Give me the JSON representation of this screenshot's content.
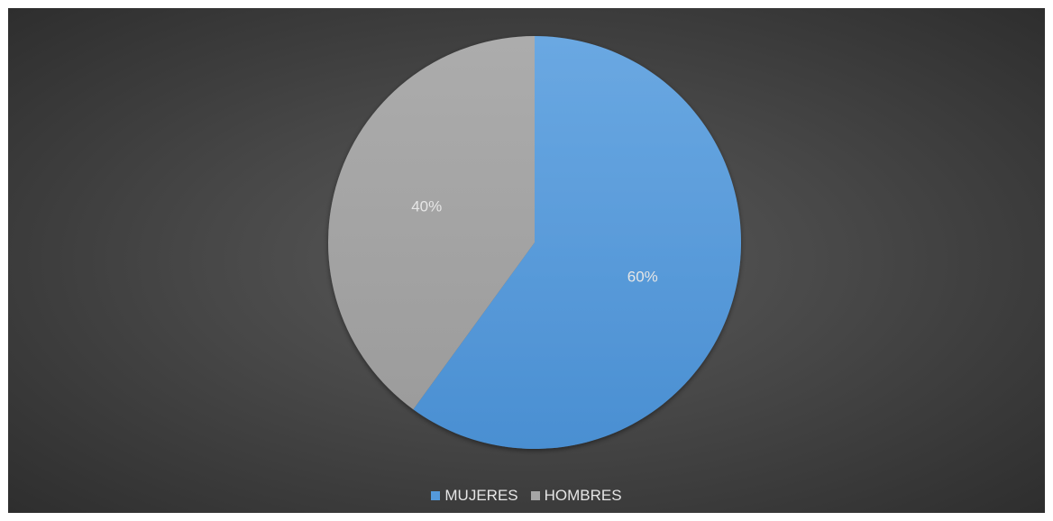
{
  "chart_data": {
    "type": "pie",
    "categories": [
      "MUJERES",
      "HOMBRES"
    ],
    "values": [
      60,
      40
    ],
    "data_labels": [
      "60%",
      "40%"
    ],
    "colors": [
      "#5499db",
      "#a6a6a6"
    ],
    "start_angle": "top",
    "direction": "clockwise",
    "legend_placement": "bottom",
    "background": "#474747"
  }
}
